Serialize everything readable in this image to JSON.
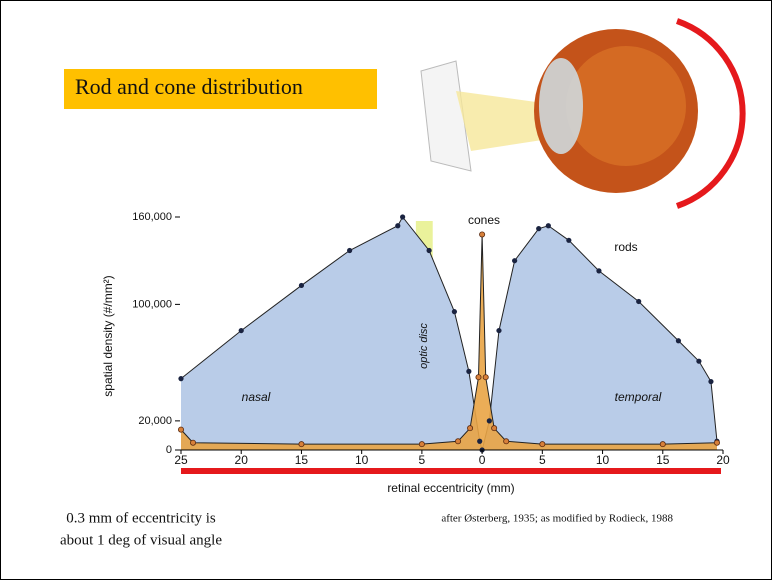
{
  "slide": {
    "title": "Rod and cone distribution",
    "caption": [
      "0.3 mm of eccentricity is",
      "about 1 deg of visual angle"
    ],
    "credit": "after Østerberg, 1935; as modified by Rodieck, 1988"
  },
  "chart_data": {
    "type": "line",
    "xlabel": "retinal eccentricity (mm)",
    "ylabel": "spatial density (#/mm²)",
    "xlim": [
      -25,
      20
    ],
    "ylim": [
      0,
      160000
    ],
    "xticks": [
      {
        "value": -25,
        "label": "25"
      },
      {
        "value": -20,
        "label": "20"
      },
      {
        "value": -15,
        "label": "15"
      },
      {
        "value": -10,
        "label": "10"
      },
      {
        "value": -5,
        "label": "5"
      },
      0,
      5,
      10,
      15,
      20
    ],
    "yticks": [
      0,
      {
        "value": 20000,
        "label": "20,000"
      },
      {
        "value": 100000,
        "label": "100,000"
      },
      {
        "value": 160000,
        "label": "160,000"
      }
    ],
    "series": [
      {
        "name": "rods",
        "color": "#b9cce8",
        "x": [
          -25,
          -20,
          -15,
          -11,
          -7,
          -6.6,
          -4.4,
          -2.3,
          -1.1,
          -0.2,
          0,
          0.6,
          1.4,
          2.7,
          4.7,
          5.5,
          7.2,
          9.7,
          13,
          16.3,
          18,
          19,
          19.5
        ],
        "values": [
          49000,
          82000,
          113000,
          137000,
          154000,
          160000,
          137000,
          95000,
          54000,
          6000,
          0,
          20000,
          82000,
          130000,
          152000,
          154000,
          144000,
          123000,
          102000,
          75000,
          61000,
          47000,
          6000
        ]
      },
      {
        "name": "cones",
        "color": "#e9a445",
        "x": [
          -25,
          -24,
          -15,
          -5,
          -2,
          -1,
          -0.3,
          0,
          0.3,
          1,
          2,
          5,
          15,
          19.5
        ],
        "values": [
          14000,
          5000,
          4000,
          4000,
          6000,
          15000,
          50000,
          148000,
          50000,
          15000,
          6000,
          4000,
          4000,
          5000
        ]
      }
    ],
    "annotations": [
      {
        "label": "nasal"
      },
      {
        "label": "temporal"
      }
    ],
    "band": {
      "label": "optic disc",
      "x": [
        -5.5,
        -4.1
      ],
      "color": "#e6f08a"
    }
  }
}
